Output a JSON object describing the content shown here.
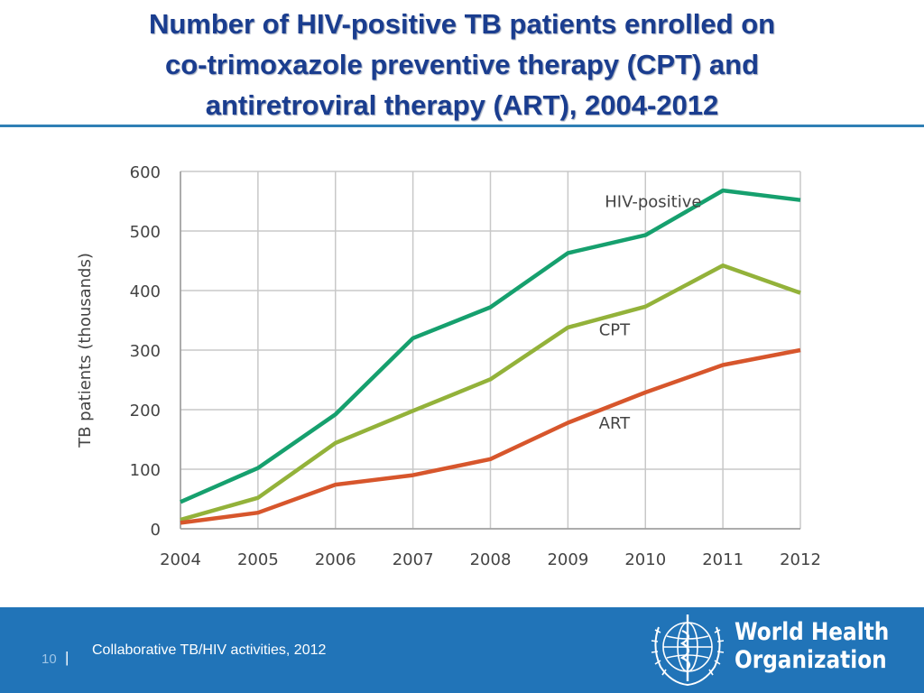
{
  "slide": {
    "title_lines": [
      "Number of HIV-positive TB patients enrolled on",
      "co-trimoxazole preventive therapy (CPT) and",
      "antiretroviral therapy (ART), 2004-2012"
    ]
  },
  "footer": {
    "page_number": "10",
    "separator": "|",
    "caption": "Collaborative TB/HIV activities, 2012",
    "org_name_line1": "World Health",
    "org_name_line2": "Organization"
  },
  "colors": {
    "title": "#1a3d8f",
    "footer_bg": "#2174b8",
    "hiv_positive": "#16a06e",
    "cpt": "#93b23a",
    "art": "#d7562c",
    "grid": "#c8c8c8",
    "axis_text": "#444444"
  },
  "chart_data": {
    "type": "line",
    "title": "",
    "xlabel": "",
    "ylabel": "TB patients (thousands)",
    "x": [
      2004,
      2005,
      2006,
      2007,
      2008,
      2009,
      2010,
      2011,
      2012
    ],
    "ylim": [
      0,
      600
    ],
    "yticks": [
      0,
      100,
      200,
      300,
      400,
      500,
      600
    ],
    "grid": true,
    "series": [
      {
        "name": "HIV-positive",
        "color": "#16a06e",
        "values": [
          45,
          102,
          192,
          320,
          372,
          463,
          493,
          568,
          552
        ]
      },
      {
        "name": "CPT",
        "color": "#93b23a",
        "values": [
          15,
          52,
          144,
          198,
          251,
          338,
          373,
          442,
          396
        ]
      },
      {
        "name": "ART",
        "color": "#d7562c",
        "values": [
          10,
          27,
          74,
          90,
          117,
          178,
          229,
          275,
          300
        ]
      }
    ],
    "annotations": [
      {
        "text": "HIV-positive",
        "x": 2010.1,
        "y": 540
      },
      {
        "text": "CPT",
        "x": 2009.6,
        "y": 325
      },
      {
        "text": "ART",
        "x": 2009.6,
        "y": 168
      }
    ]
  }
}
